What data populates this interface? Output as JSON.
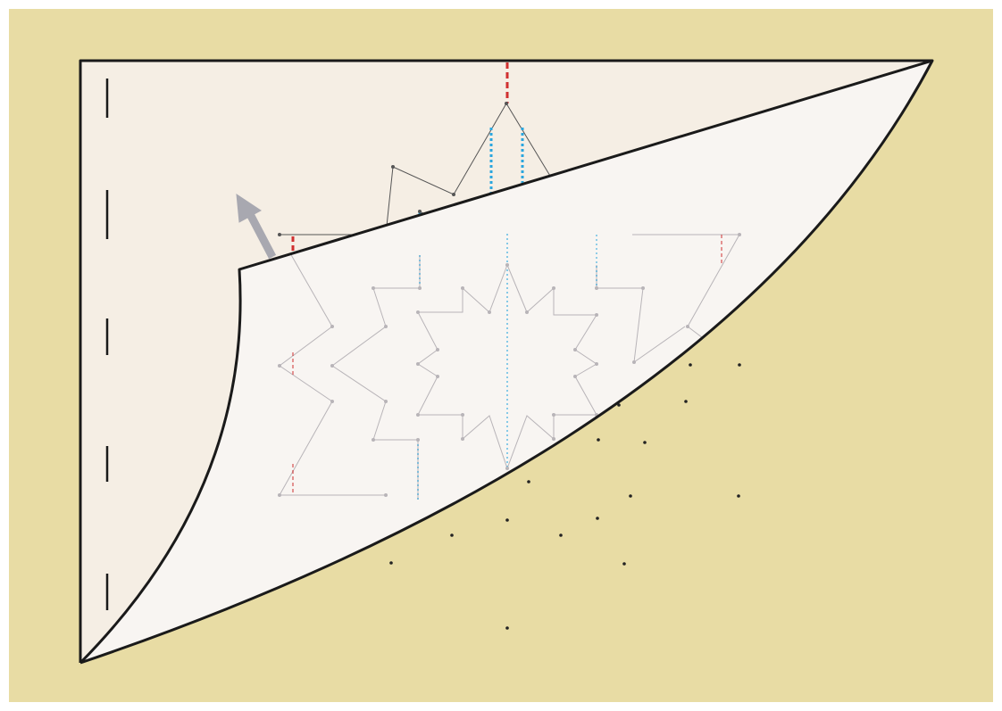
{
  "diagram": {
    "colors": {
      "frame": "#ffffff",
      "background": "#e8dca4",
      "paper_back": "#f5eee4",
      "paper_flap": "#f8f5f2",
      "outline": "#1a1a1a",
      "pattern_dark": "#555555",
      "pattern_faint": "#b8b4b8",
      "cut_red": "#d03030",
      "cut_blue": "#2aa6de",
      "arrow": "#a8a8b0",
      "dot": "#222222"
    },
    "icons": {
      "fold_arrow": "arrow-up-left-icon"
    }
  }
}
